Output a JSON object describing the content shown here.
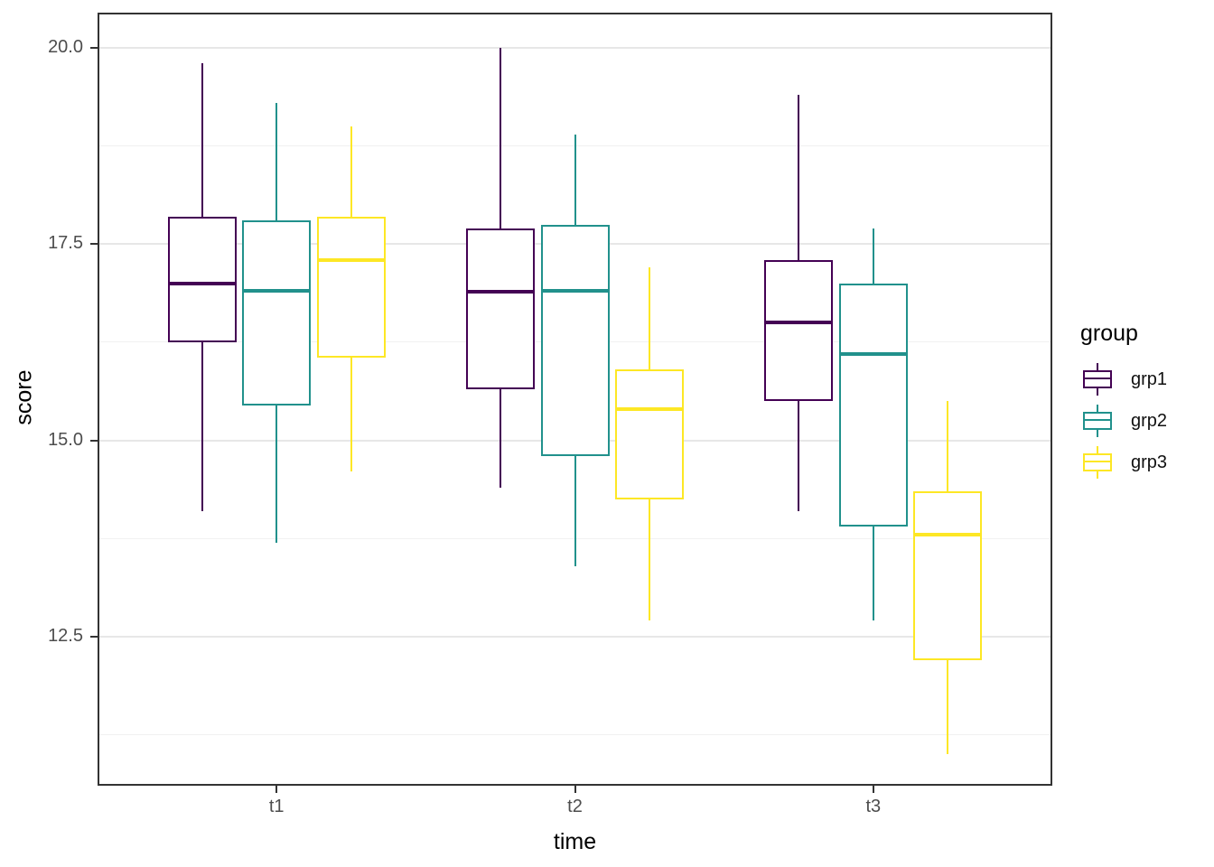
{
  "chart_data": {
    "type": "boxplot",
    "title": "",
    "xlabel": "time",
    "ylabel": "score",
    "categories": [
      "t1",
      "t2",
      "t3"
    ],
    "y_ticks": [
      20.0,
      17.5,
      15.0,
      12.5
    ],
    "y_tick_labels": [
      "20.0",
      "17.5",
      "15.0",
      "12.5"
    ],
    "y_minor_ticks": [
      18.75,
      16.25,
      13.75,
      11.25
    ],
    "ylim": [
      10.6,
      20.45
    ],
    "grid": "major+minor horizontal",
    "legend_position": "right",
    "legend_title": "group",
    "series": [
      {
        "name": "grp1",
        "color": "#440154",
        "boxes": [
          {
            "category": "t1",
            "min": 14.1,
            "q1": 16.25,
            "median": 17.0,
            "q3": 17.85,
            "max": 19.8
          },
          {
            "category": "t2",
            "min": 14.4,
            "q1": 15.65,
            "median": 16.9,
            "q3": 17.7,
            "max": 20.0
          },
          {
            "category": "t3",
            "min": 14.1,
            "q1": 15.5,
            "median": 16.5,
            "q3": 17.3,
            "max": 19.4
          }
        ]
      },
      {
        "name": "grp2",
        "color": "#21918c",
        "boxes": [
          {
            "category": "t1",
            "min": 13.7,
            "q1": 15.45,
            "median": 16.9,
            "q3": 17.8,
            "max": 19.3
          },
          {
            "category": "t2",
            "min": 13.4,
            "q1": 14.8,
            "median": 16.9,
            "q3": 17.75,
            "max": 18.9
          },
          {
            "category": "t3",
            "min": 12.7,
            "q1": 13.9,
            "median": 16.1,
            "q3": 17.0,
            "max": 17.7
          }
        ]
      },
      {
        "name": "grp3",
        "color": "#fde725",
        "boxes": [
          {
            "category": "t1",
            "min": 14.6,
            "q1": 16.05,
            "median": 17.3,
            "q3": 17.85,
            "max": 19.0
          },
          {
            "category": "t2",
            "min": 12.7,
            "q1": 14.25,
            "median": 15.4,
            "q3": 15.9,
            "max": 17.2
          },
          {
            "category": "t3",
            "min": 11.0,
            "q1": 12.2,
            "median": 13.8,
            "q3": 14.35,
            "max": 15.5
          }
        ]
      }
    ],
    "colors": {
      "panel_border": "#333333",
      "grid_major": "#e7e7e7",
      "grid_minor": "#f1f1f1",
      "tick_mark": "#333333",
      "tick_label": "#4d4d4d",
      "axis_title": "#000000",
      "background": "#ffffff"
    }
  }
}
